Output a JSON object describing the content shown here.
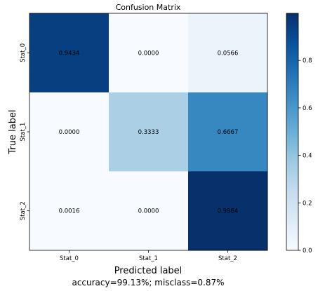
{
  "chart_data": {
    "type": "heatmap",
    "title": "Confusion Matrix",
    "xlabel": "Predicted label",
    "ylabel": "True label",
    "subtitle": "accuracy=99.13%; misclass=0.87%",
    "x_categories": [
      "Stat_0",
      "Stat_1",
      "Stat_2"
    ],
    "y_categories": [
      "Stat_0",
      "Stat_1",
      "Stat_2"
    ],
    "values": [
      [
        0.9434,
        0.0,
        0.0566
      ],
      [
        0.0,
        0.3333,
        0.6667
      ],
      [
        0.0016,
        0.0,
        0.9984
      ]
    ],
    "cell_labels": [
      [
        "0.9434",
        "0.0000",
        "0.0566"
      ],
      [
        "0.0000",
        "0.3333",
        "0.6667"
      ],
      [
        "0.0016",
        "0.0000",
        "0.9984"
      ]
    ],
    "colormap": "Blues",
    "colorbar": {
      "range": [
        0,
        1
      ],
      "ticks": [
        0.0,
        0.2,
        0.4,
        0.6,
        0.8
      ],
      "tick_labels": [
        "0.0",
        "0.2",
        "0.4",
        "0.6",
        "0.8"
      ]
    },
    "grid": false
  }
}
